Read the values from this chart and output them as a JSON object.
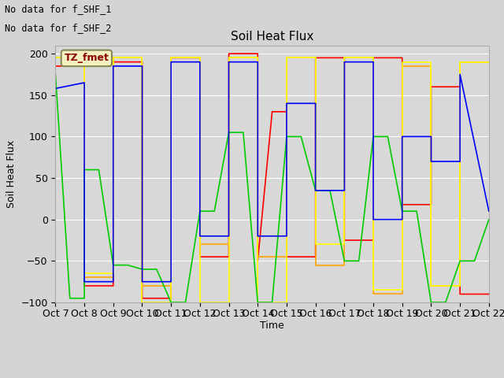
{
  "title": "Soil Heat Flux",
  "ylabel": "Soil Heat Flux",
  "xlabel": "Time",
  "ylim": [
    -100,
    210
  ],
  "xlim": [
    0,
    15
  ],
  "text_top_left": [
    "No data for f_SHF_1",
    "No data for f_SHF_2"
  ],
  "annotation_box": "TZ_fmet",
  "x_tick_labels": [
    "Oct 7",
    "Oct 8",
    "Oct 9",
    "Oct 10",
    "Oct 11",
    "Oct 12",
    "Oct 13",
    "Oct 14",
    "Oct 15",
    "Oct 16",
    "Oct 17",
    "Oct 18",
    "Oct 19",
    "Oct 20",
    "Oct 21",
    "Oct 22"
  ],
  "fig_facecolor": "#d4d4d4",
  "plot_bg_color": "#d8d8d8",
  "grid_color": "#ffffff",
  "series": {
    "SHF1": {
      "color": "#ff0000",
      "x": [
        0,
        1,
        1,
        2,
        2,
        3,
        3,
        4,
        4,
        5,
        5,
        6,
        6,
        7,
        7,
        7.5,
        8,
        8,
        9,
        9,
        10,
        10,
        11,
        11,
        12,
        12,
        13,
        13,
        14,
        14,
        15
      ],
      "y": [
        185,
        185,
        -80,
        -80,
        190,
        190,
        -95,
        -95,
        195,
        195,
        -45,
        -45,
        200,
        200,
        -50,
        130,
        130,
        -45,
        -45,
        195,
        195,
        -25,
        -25,
        195,
        195,
        18,
        18,
        160,
        160,
        -90,
        -90
      ]
    },
    "SHF2": {
      "color": "#ffa500",
      "x": [
        0,
        0,
        1,
        1,
        2,
        2,
        3,
        3,
        4,
        4,
        5,
        5,
        6,
        6,
        7,
        7,
        8,
        8,
        9,
        9,
        10,
        10,
        11,
        11,
        12,
        12,
        13,
        13,
        14,
        14,
        15
      ],
      "y": [
        170,
        195,
        195,
        -70,
        -70,
        195,
        195,
        -80,
        -80,
        195,
        195,
        -30,
        -30,
        195,
        195,
        -45,
        -45,
        195,
        195,
        -55,
        -55,
        195,
        195,
        -90,
        -90,
        185,
        185,
        -80,
        -80,
        190,
        190
      ]
    },
    "SHF3": {
      "color": "#ffff00",
      "x": [
        0,
        0,
        1,
        1,
        2,
        2,
        3,
        3,
        4,
        4,
        5,
        5,
        6,
        6,
        7,
        7,
        8,
        8,
        9,
        9,
        10,
        10,
        11,
        11,
        12,
        12,
        13,
        13,
        14,
        14,
        15
      ],
      "y": [
        175,
        195,
        195,
        -65,
        -65,
        195,
        195,
        -100,
        -100,
        195,
        195,
        -100,
        -100,
        195,
        195,
        -100,
        -100,
        195,
        195,
        -30,
        -30,
        195,
        195,
        -85,
        -85,
        190,
        190,
        -80,
        -80,
        190,
        190
      ]
    },
    "SHF4": {
      "color": "#00cc00",
      "x": [
        0,
        0.5,
        1,
        1,
        1.5,
        2,
        2.5,
        3,
        3.5,
        4,
        4.5,
        5,
        5.5,
        6,
        6.5,
        7,
        7.5,
        8,
        8.5,
        9,
        9.5,
        10,
        10.5,
        11,
        11.5,
        12,
        12.5,
        13,
        13.5,
        14,
        14.5,
        15
      ],
      "y": [
        175,
        -95,
        -95,
        60,
        60,
        -55,
        -55,
        -60,
        -60,
        -100,
        -100,
        10,
        10,
        105,
        105,
        -100,
        -100,
        100,
        100,
        35,
        35,
        -50,
        -50,
        100,
        100,
        10,
        10,
        -100,
        -100,
        -50,
        -50,
        0
      ]
    },
    "SHF5": {
      "color": "#0000ff",
      "x": [
        0,
        0,
        1,
        1,
        2,
        2,
        3,
        3,
        4,
        4,
        5,
        5,
        6,
        6,
        7,
        7,
        8,
        8,
        9,
        9,
        10,
        10,
        11,
        11,
        12,
        12,
        13,
        13,
        14,
        14,
        15
      ],
      "y": [
        158,
        158,
        165,
        -75,
        -75,
        185,
        185,
        -75,
        -75,
        190,
        190,
        -20,
        -20,
        190,
        190,
        -20,
        -20,
        140,
        140,
        35,
        35,
        190,
        190,
        0,
        0,
        100,
        100,
        70,
        70,
        175,
        10
      ]
    }
  }
}
